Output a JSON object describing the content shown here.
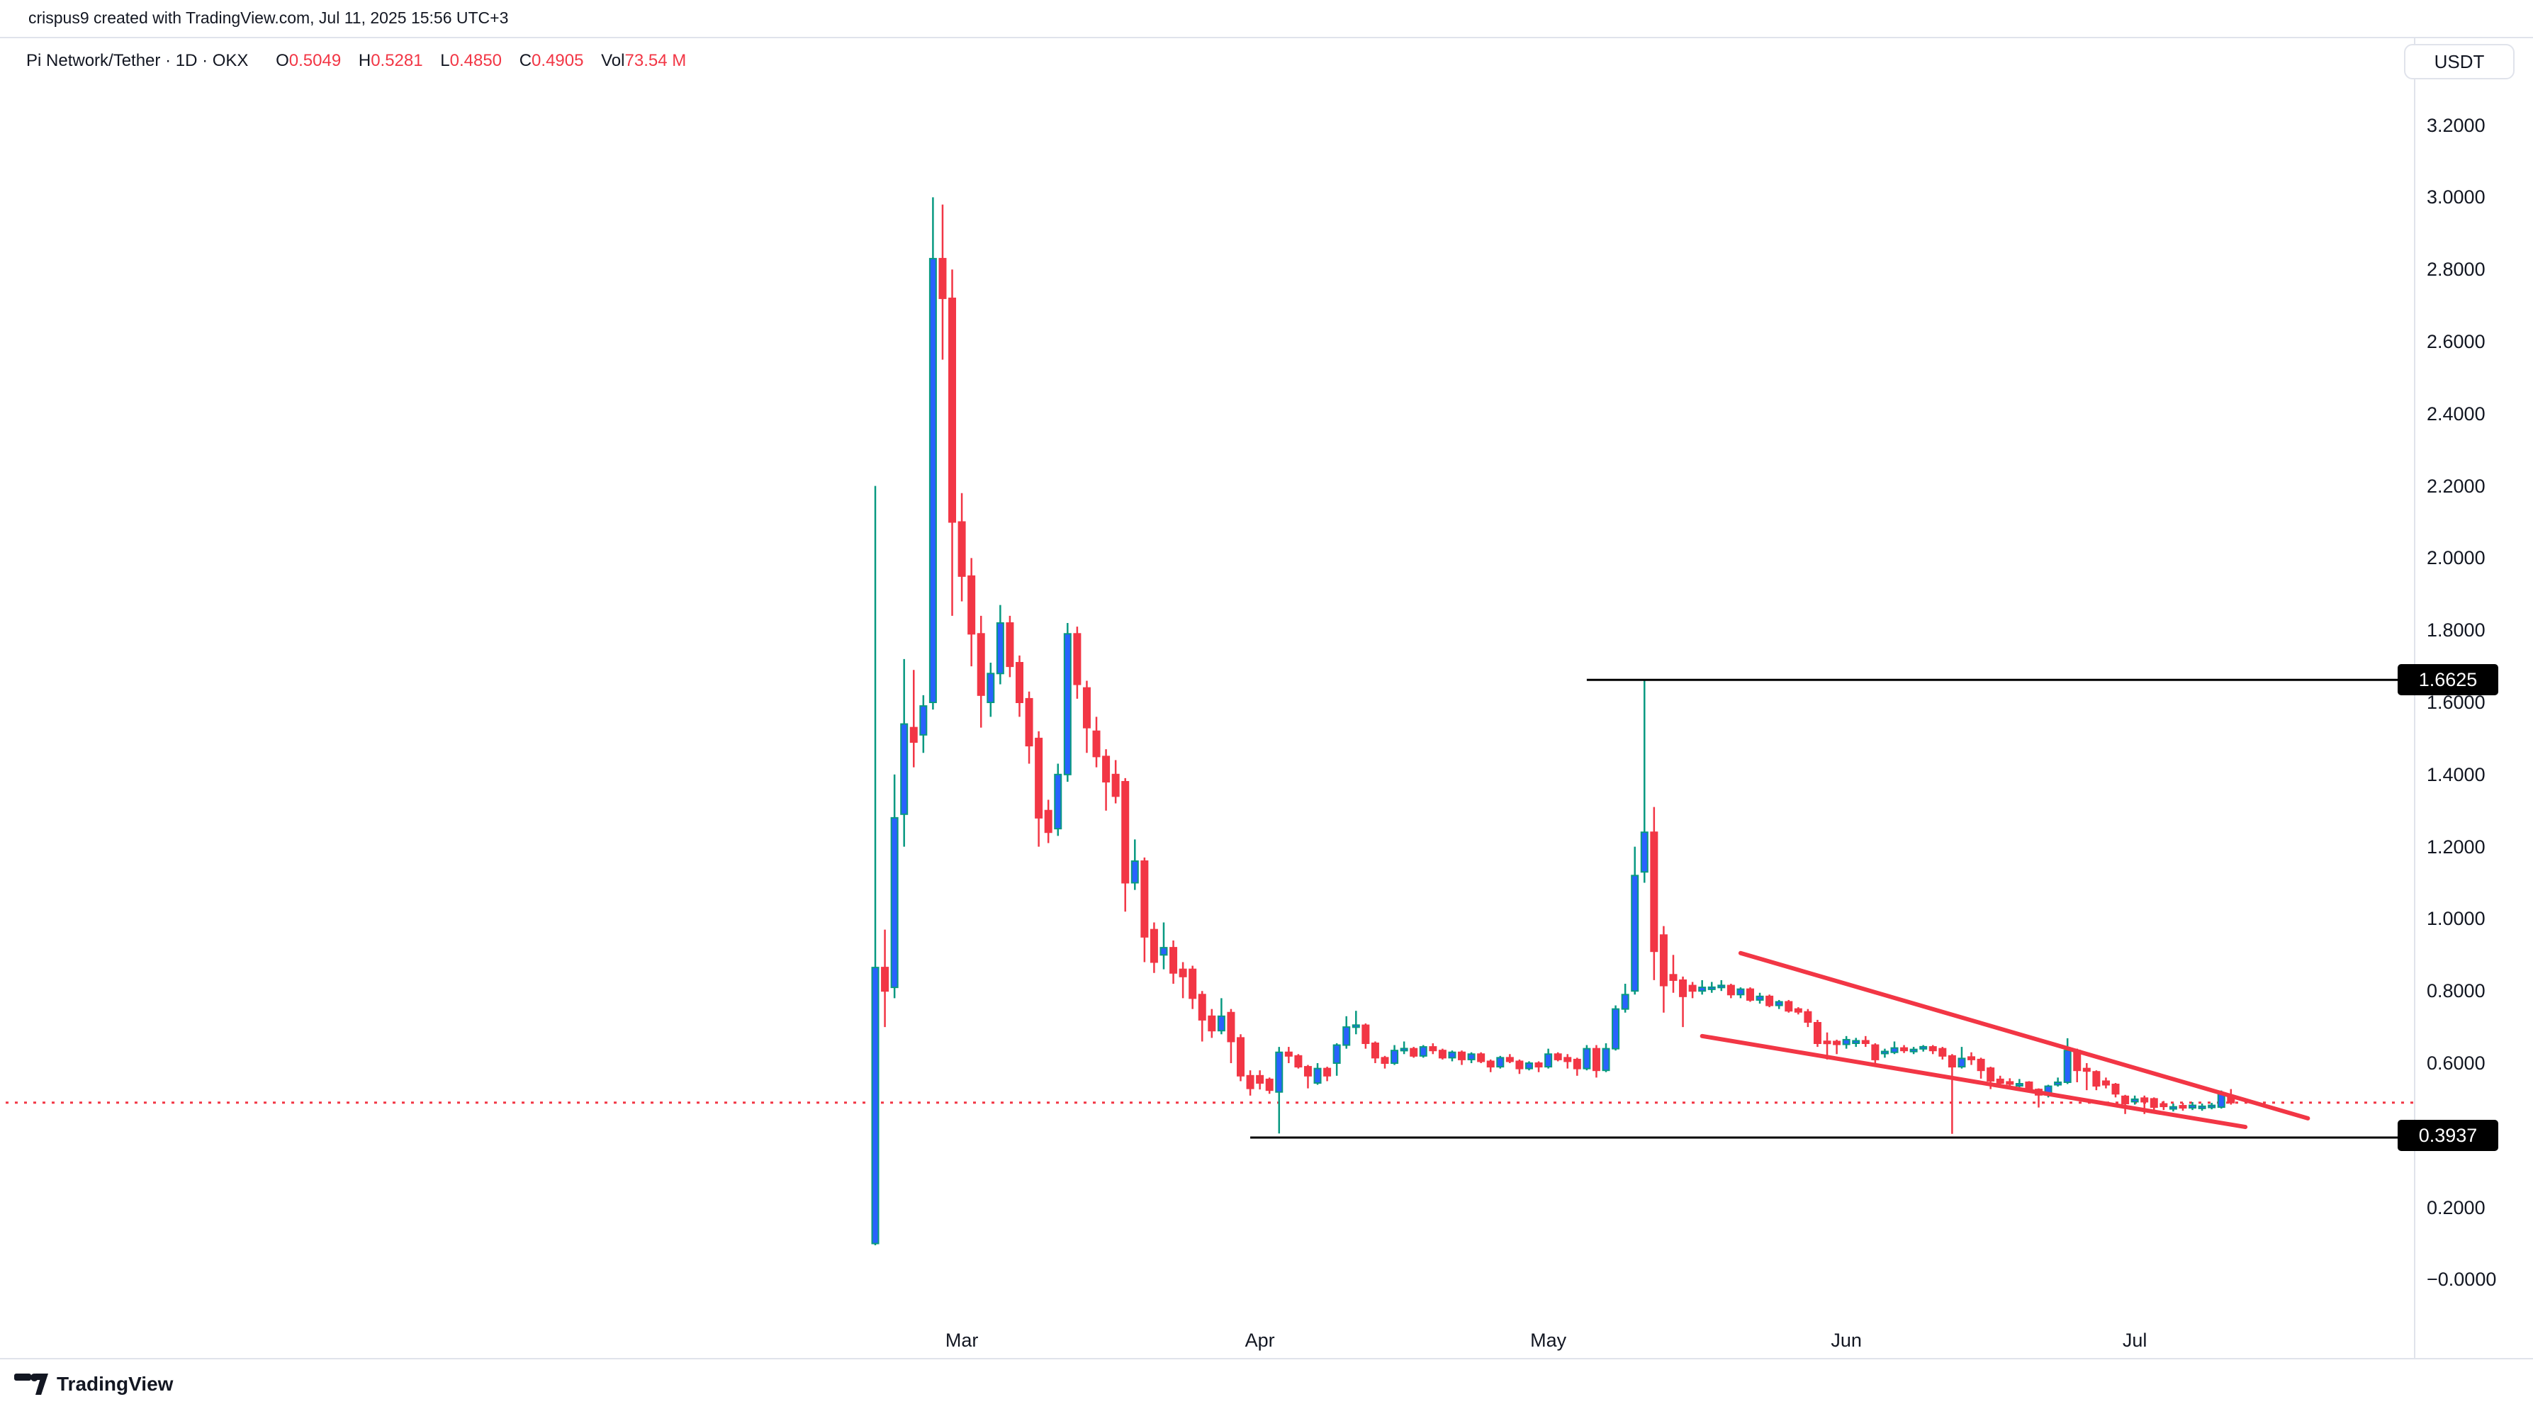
{
  "header": {
    "attribution": "crispus9 created with TradingView.com, Jul 11, 2025 15:56 UTC+3"
  },
  "legend": {
    "symbol": "Pi Network/Tether",
    "interval": "1D",
    "exchange": "OKX",
    "symbol_line": "Pi Network/Tether · 1D · OKX",
    "o_label": "O",
    "o_value": "0.5049",
    "h_label": "H",
    "h_value": "0.5281",
    "l_label": "L",
    "l_value": "0.4850",
    "c_label": "C",
    "c_value": "0.4905",
    "vol_label": "Vol",
    "vol_value": "73.54 M"
  },
  "price_axis": {
    "currency": "USDT",
    "badge_upper": "1.6625",
    "badge_lower": "0.3937",
    "labels": [
      [
        "3.2000",
        3.2
      ],
      [
        "3.0000",
        3.0
      ],
      [
        "2.8000",
        2.8
      ],
      [
        "2.6000",
        2.6
      ],
      [
        "2.4000",
        2.4
      ],
      [
        "2.2000",
        2.2
      ],
      [
        "2.0000",
        2.0
      ],
      [
        "1.8000",
        1.8
      ],
      [
        "1.6000",
        1.6
      ],
      [
        "1.4000",
        1.4
      ],
      [
        "1.2000",
        1.2
      ],
      [
        "1.0000",
        1.0
      ],
      [
        "0.8000",
        0.8
      ],
      [
        "0.6000",
        0.6
      ],
      [
        "0.2000",
        0.2
      ],
      [
        "−0.0000",
        0.0
      ]
    ]
  },
  "time_axis": {
    "labels": [
      {
        "label": "Mar",
        "day_index": 9
      },
      {
        "label": "Apr",
        "day_index": 40
      },
      {
        "label": "May",
        "day_index": 70
      },
      {
        "label": "Jun",
        "day_index": 101
      },
      {
        "label": "Jul",
        "day_index": 131
      }
    ]
  },
  "footer": {
    "brand": "TradingView"
  },
  "colors": {
    "up_body": "#2962FF",
    "up_wick": "#089981",
    "down": "#F23645",
    "text": "#131722",
    "grid_border": "#E0E3EB",
    "annotation_black": "#000000",
    "price_line_red": "#F23645"
  },
  "chart_data": {
    "type": "candlestick",
    "title": "Pi Network/Tether · 1D · OKX",
    "xlabel": "",
    "ylabel": "USDT",
    "y_range": [
      -0.0,
      3.2
    ],
    "grid": false,
    "current_price": 0.4905,
    "candles": [
      [
        "Feb 20",
        0.1,
        2.2,
        0.095,
        0.865
      ],
      [
        "Feb 21",
        0.865,
        0.97,
        0.7,
        0.8
      ],
      [
        "Feb 22",
        0.81,
        1.4,
        0.78,
        1.28
      ],
      [
        "Feb 23",
        1.29,
        1.72,
        1.2,
        1.54
      ],
      [
        "Feb 24",
        1.53,
        1.69,
        1.42,
        1.49
      ],
      [
        "Feb 25",
        1.51,
        1.62,
        1.46,
        1.59
      ],
      [
        "Feb 26",
        1.6,
        3.0,
        1.58,
        2.83
      ],
      [
        "Feb 27",
        2.83,
        2.98,
        2.55,
        2.72
      ],
      [
        "Feb 28",
        2.72,
        2.8,
        1.84,
        2.1
      ],
      [
        "Mar 1",
        2.1,
        2.18,
        1.88,
        1.95
      ],
      [
        "Mar 2",
        1.95,
        2.0,
        1.7,
        1.79
      ],
      [
        "Mar 3",
        1.79,
        1.84,
        1.53,
        1.62
      ],
      [
        "Mar 4",
        1.6,
        1.71,
        1.56,
        1.68
      ],
      [
        "Mar 5",
        1.68,
        1.87,
        1.65,
        1.82
      ],
      [
        "Mar 6",
        1.82,
        1.84,
        1.67,
        1.7
      ],
      [
        "Mar 7",
        1.71,
        1.73,
        1.56,
        1.6
      ],
      [
        "Mar 8",
        1.61,
        1.63,
        1.43,
        1.48
      ],
      [
        "Mar 9",
        1.5,
        1.52,
        1.2,
        1.28
      ],
      [
        "Mar 10",
        1.3,
        1.33,
        1.21,
        1.24
      ],
      [
        "Mar 11",
        1.25,
        1.43,
        1.23,
        1.4
      ],
      [
        "Mar 12",
        1.4,
        1.82,
        1.38,
        1.79
      ],
      [
        "Mar 13",
        1.79,
        1.81,
        1.61,
        1.65
      ],
      [
        "Mar 14",
        1.64,
        1.66,
        1.46,
        1.53
      ],
      [
        "Mar 15",
        1.52,
        1.56,
        1.42,
        1.45
      ],
      [
        "Mar 16",
        1.45,
        1.47,
        1.3,
        1.38
      ],
      [
        "Mar 17",
        1.4,
        1.44,
        1.32,
        1.34
      ],
      [
        "Mar 18",
        1.38,
        1.39,
        1.02,
        1.1
      ],
      [
        "Mar 19",
        1.1,
        1.22,
        1.08,
        1.16
      ],
      [
        "Mar 20",
        1.16,
        1.17,
        0.88,
        0.95
      ],
      [
        "Mar 21",
        0.97,
        0.99,
        0.85,
        0.88
      ],
      [
        "Mar 22",
        0.9,
        0.99,
        0.86,
        0.92
      ],
      [
        "Mar 23",
        0.92,
        0.94,
        0.82,
        0.85
      ],
      [
        "Mar 24",
        0.86,
        0.88,
        0.78,
        0.84
      ],
      [
        "Mar 25",
        0.86,
        0.87,
        0.75,
        0.78
      ],
      [
        "Mar 26",
        0.79,
        0.8,
        0.66,
        0.72
      ],
      [
        "Mar 27",
        0.73,
        0.75,
        0.67,
        0.69
      ],
      [
        "Mar 28",
        0.69,
        0.78,
        0.68,
        0.73
      ],
      [
        "Mar 29",
        0.74,
        0.75,
        0.6,
        0.66
      ],
      [
        "Mar 30",
        0.67,
        0.68,
        0.55,
        0.565
      ],
      [
        "Mar 31",
        0.565,
        0.58,
        0.51,
        0.53
      ],
      [
        "Apr 1",
        0.565,
        0.58,
        0.527,
        0.545
      ],
      [
        "Apr 2",
        0.555,
        0.56,
        0.515,
        0.525
      ],
      [
        "Apr 3",
        0.52,
        0.645,
        0.405,
        0.63
      ],
      [
        "Apr 4",
        0.63,
        0.645,
        0.6,
        0.62
      ],
      [
        "Apr 5",
        0.62,
        0.625,
        0.585,
        0.59
      ],
      [
        "Apr 6",
        0.59,
        0.595,
        0.53,
        0.565
      ],
      [
        "Apr 7",
        0.545,
        0.6,
        0.54,
        0.585
      ],
      [
        "Apr 8",
        0.585,
        0.59,
        0.55,
        0.565
      ],
      [
        "Apr 9",
        0.6,
        0.655,
        0.565,
        0.65
      ],
      [
        "Apr 10",
        0.65,
        0.73,
        0.64,
        0.7
      ],
      [
        "Apr 11",
        0.7,
        0.745,
        0.68,
        0.705
      ],
      [
        "Apr 12",
        0.705,
        0.71,
        0.64,
        0.655
      ],
      [
        "Apr 13",
        0.655,
        0.66,
        0.6,
        0.615
      ],
      [
        "Apr 14",
        0.615,
        0.62,
        0.585,
        0.6
      ],
      [
        "Apr 15",
        0.6,
        0.65,
        0.595,
        0.635
      ],
      [
        "Apr 16",
        0.635,
        0.66,
        0.625,
        0.64
      ],
      [
        "Apr 17",
        0.64,
        0.645,
        0.615,
        0.62
      ],
      [
        "Apr 18",
        0.62,
        0.65,
        0.615,
        0.645
      ],
      [
        "Apr 19",
        0.645,
        0.655,
        0.625,
        0.635
      ],
      [
        "Apr 20",
        0.635,
        0.64,
        0.61,
        0.615
      ],
      [
        "Apr 21",
        0.615,
        0.635,
        0.605,
        0.63
      ],
      [
        "Apr 22",
        0.63,
        0.635,
        0.595,
        0.61
      ],
      [
        "Apr 23",
        0.61,
        0.63,
        0.6,
        0.625
      ],
      [
        "Apr 24",
        0.625,
        0.63,
        0.6,
        0.605
      ],
      [
        "Apr 25",
        0.605,
        0.61,
        0.575,
        0.59
      ],
      [
        "Apr 26",
        0.59,
        0.62,
        0.585,
        0.615
      ],
      [
        "Apr 27",
        0.615,
        0.625,
        0.6,
        0.605
      ],
      [
        "Apr 28",
        0.605,
        0.61,
        0.57,
        0.585
      ],
      [
        "Apr 29",
        0.585,
        0.605,
        0.58,
        0.6
      ],
      [
        "Apr 30",
        0.6,
        0.605,
        0.575,
        0.59
      ],
      [
        "May 1",
        0.59,
        0.64,
        0.585,
        0.625
      ],
      [
        "May 2",
        0.625,
        0.63,
        0.605,
        0.61
      ],
      [
        "May 3",
        0.615,
        0.625,
        0.585,
        0.605
      ],
      [
        "May 4",
        0.61,
        0.615,
        0.565,
        0.585
      ],
      [
        "May 5",
        0.585,
        0.65,
        0.58,
        0.64
      ],
      [
        "May 6",
        0.64,
        0.65,
        0.56,
        0.58
      ],
      [
        "May 7",
        0.58,
        0.655,
        0.575,
        0.64
      ],
      [
        "May 8",
        0.64,
        0.76,
        0.635,
        0.75
      ],
      [
        "May 9",
        0.75,
        0.82,
        0.74,
        0.79
      ],
      [
        "May 10",
        0.8,
        1.2,
        0.79,
        1.12
      ],
      [
        "May 11",
        1.13,
        1.6625,
        1.1,
        1.24
      ],
      [
        "May 12",
        1.24,
        1.31,
        0.83,
        0.91
      ],
      [
        "May 13",
        0.955,
        0.98,
        0.74,
        0.815
      ],
      [
        "May 14",
        0.845,
        0.9,
        0.795,
        0.83
      ],
      [
        "May 15",
        0.83,
        0.84,
        0.7,
        0.785
      ],
      [
        "May 16",
        0.815,
        0.825,
        0.78,
        0.8
      ],
      [
        "May 17",
        0.8,
        0.83,
        0.79,
        0.81
      ],
      [
        "May 18",
        0.805,
        0.825,
        0.795,
        0.81
      ],
      [
        "May 19",
        0.81,
        0.83,
        0.8,
        0.815
      ],
      [
        "May 20",
        0.815,
        0.82,
        0.78,
        0.79
      ],
      [
        "May 21",
        0.79,
        0.81,
        0.78,
        0.805
      ],
      [
        "May 22",
        0.805,
        0.81,
        0.77,
        0.775
      ],
      [
        "May 23",
        0.775,
        0.795,
        0.765,
        0.785
      ],
      [
        "May 24",
        0.785,
        0.79,
        0.755,
        0.76
      ],
      [
        "May 25",
        0.76,
        0.775,
        0.75,
        0.77
      ],
      [
        "May 26",
        0.77,
        0.775,
        0.74,
        0.745
      ],
      [
        "May 27",
        0.75,
        0.755,
        0.735,
        0.742
      ],
      [
        "May 28",
        0.742,
        0.75,
        0.7,
        0.714
      ],
      [
        "May 29",
        0.712,
        0.72,
        0.645,
        0.655
      ],
      [
        "May 30",
        0.66,
        0.685,
        0.61,
        0.655
      ],
      [
        "May 31",
        0.66,
        0.665,
        0.625,
        0.652
      ],
      [
        "Jun 1",
        0.652,
        0.675,
        0.64,
        0.665
      ],
      [
        "Jun 2",
        0.655,
        0.67,
        0.645,
        0.662
      ],
      [
        "Jun 3",
        0.662,
        0.675,
        0.645,
        0.655
      ],
      [
        "Jun 4",
        0.65,
        0.655,
        0.6,
        0.61
      ],
      [
        "Jun 5",
        0.627,
        0.64,
        0.615,
        0.632
      ],
      [
        "Jun 6",
        0.63,
        0.66,
        0.625,
        0.642
      ],
      [
        "Jun 7",
        0.642,
        0.65,
        0.628,
        0.635
      ],
      [
        "Jun 8",
        0.632,
        0.645,
        0.625,
        0.638
      ],
      [
        "Jun 9",
        0.64,
        0.65,
        0.632,
        0.645
      ],
      [
        "Jun 10",
        0.645,
        0.65,
        0.625,
        0.635
      ],
      [
        "Jun 11",
        0.64,
        0.645,
        0.61,
        0.62
      ],
      [
        "Jun 12",
        0.62,
        0.625,
        0.404,
        0.59
      ],
      [
        "Jun 13",
        0.59,
        0.645,
        0.585,
        0.613
      ],
      [
        "Jun 14",
        0.617,
        0.63,
        0.595,
        0.61
      ],
      [
        "Jun 15",
        0.61,
        0.615,
        0.557,
        0.58
      ],
      [
        "Jun 16",
        0.586,
        0.59,
        0.528,
        0.551
      ],
      [
        "Jun 17",
        0.555,
        0.565,
        0.535,
        0.545
      ],
      [
        "Jun 18",
        0.548,
        0.558,
        0.532,
        0.542
      ],
      [
        "Jun 19",
        0.538,
        0.556,
        0.527,
        0.542
      ],
      [
        "Jun 20",
        0.547,
        0.55,
        0.52,
        0.527
      ],
      [
        "Jun 21",
        0.527,
        0.53,
        0.477,
        0.512
      ],
      [
        "Jun 22",
        0.512,
        0.54,
        0.505,
        0.536
      ],
      [
        "Jun 23",
        0.54,
        0.56,
        0.535,
        0.547
      ],
      [
        "Jun 24",
        0.547,
        0.669,
        0.542,
        0.635
      ],
      [
        "Jun 25",
        0.635,
        0.64,
        0.547,
        0.58
      ],
      [
        "Jun 26",
        0.585,
        0.6,
        0.525,
        0.578
      ],
      [
        "Jun 27",
        0.576,
        0.58,
        0.525,
        0.537
      ],
      [
        "Jun 28",
        0.55,
        0.56,
        0.53,
        0.54
      ],
      [
        "Jun 29",
        0.541,
        0.545,
        0.505,
        0.515
      ],
      [
        "Jun 30",
        0.508,
        0.512,
        0.459,
        0.488
      ],
      [
        "Jul 1",
        0.493,
        0.51,
        0.485,
        0.5
      ],
      [
        "Jul 2",
        0.503,
        0.51,
        0.459,
        0.493
      ],
      [
        "Jul 3",
        0.501,
        0.505,
        0.468,
        0.478
      ],
      [
        "Jul 4",
        0.487,
        0.495,
        0.47,
        0.48
      ],
      [
        "Jul 5",
        0.474,
        0.488,
        0.466,
        0.478
      ],
      [
        "Jul 6",
        0.482,
        0.49,
        0.468,
        0.476
      ],
      [
        "Jul 7",
        0.476,
        0.492,
        0.47,
        0.483
      ],
      [
        "Jul 8",
        0.475,
        0.488,
        0.468,
        0.48
      ],
      [
        "Jul 9",
        0.478,
        0.49,
        0.472,
        0.482
      ],
      [
        "Jul 10",
        0.478,
        0.524,
        0.474,
        0.515
      ],
      [
        "Jul 11",
        0.5049,
        0.5281,
        0.485,
        0.4905
      ]
    ],
    "annotations": {
      "horizontal_rays": [
        {
          "price": 1.6625,
          "start_day_index": 74,
          "label": "1.6625"
        },
        {
          "price": 0.3937,
          "start_day_index": 39,
          "label": "0.3937"
        }
      ],
      "trend_lines": [
        {
          "name": "wedge-upper",
          "d1": 90,
          "p1": 0.905,
          "d2": 149,
          "p2": 0.447
        },
        {
          "name": "wedge-lower",
          "d1": 86,
          "p1": 0.675,
          "d2": 142.5,
          "p2": 0.423
        }
      ],
      "price_line": {
        "price": 0.4905,
        "style": "dotted"
      }
    }
  }
}
